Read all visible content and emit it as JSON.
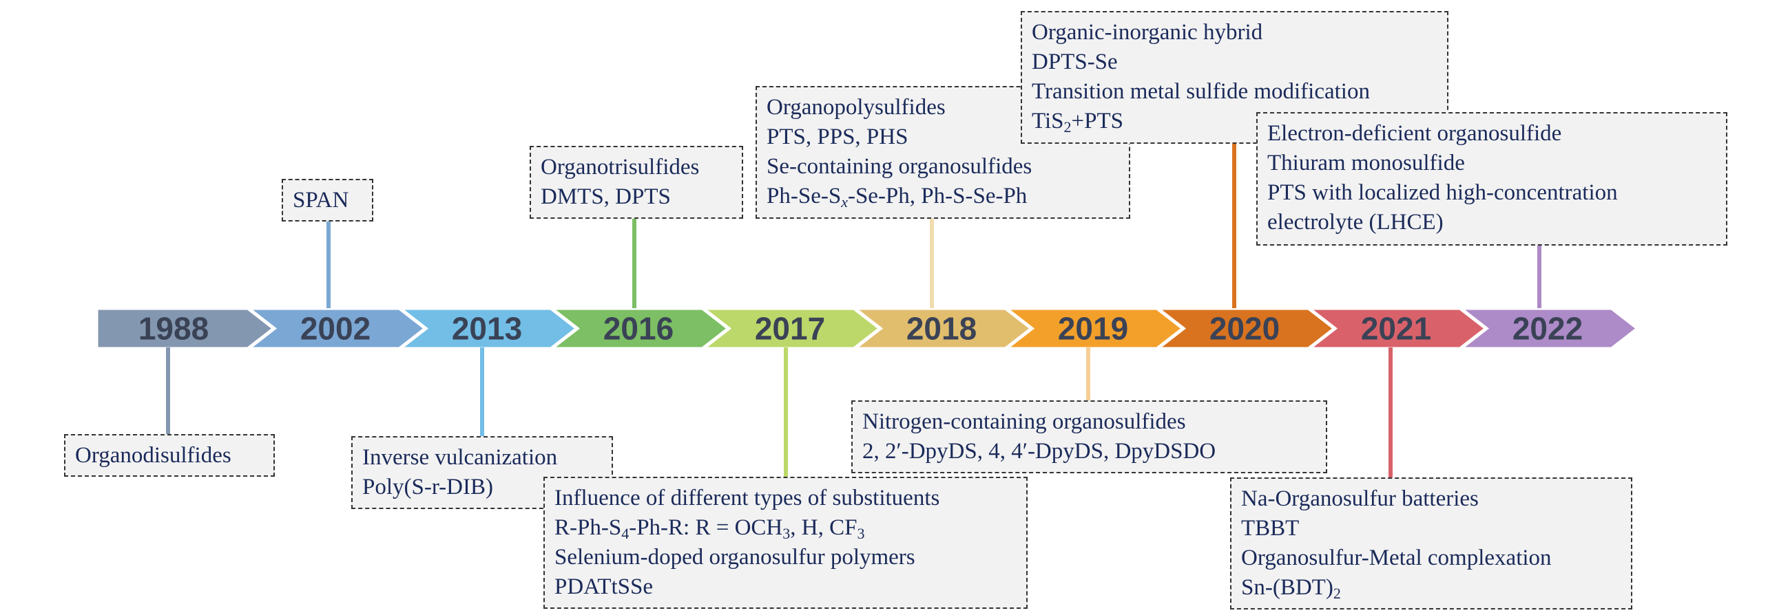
{
  "timeline": [
    {
      "year": "1988",
      "color": "#8497b0"
    },
    {
      "year": "2002",
      "color": "#7ba7d4"
    },
    {
      "year": "2013",
      "color": "#72bee6"
    },
    {
      "year": "2016",
      "color": "#7cbf64"
    },
    {
      "year": "2017",
      "color": "#bcd86a"
    },
    {
      "year": "2018",
      "color": "#e1bd6e"
    },
    {
      "year": "2019",
      "color": "#f3a02b"
    },
    {
      "year": "2020",
      "color": "#d9731f"
    },
    {
      "year": "2021",
      "color": "#d9626a"
    },
    {
      "year": "2022",
      "color": "#ad8ac8"
    }
  ],
  "boxes": {
    "b1988": {
      "lines": [
        "Organodisulfides"
      ]
    },
    "b2002": {
      "lines": [
        "SPAN"
      ]
    },
    "b2013": {
      "lines": [
        "Inverse vulcanization",
        "Poly(S-r-DIB)"
      ]
    },
    "b2016": {
      "lines": [
        "Organotrisulfides",
        "DMTS, DPTS"
      ]
    },
    "b2017": {
      "line1": "Influence of different types of substituents",
      "line2": {
        "a": "R-Ph-S",
        "s1": "4",
        "b": "-Ph-R: R = OCH",
        "s2": "3",
        "c": ", H, CF",
        "s3": "3"
      },
      "line3": "Selenium-doped organosulfur polymers",
      "line4": "PDATtSSe"
    },
    "b2018": {
      "line1": "Organopolysulfides",
      "line2": "PTS, PPS, PHS",
      "line3": "Se-containing organosulfides",
      "line4": {
        "a": "Ph-Se-S",
        "s1": "x",
        "b": "-Se-Ph, Ph-S-Se-Ph"
      }
    },
    "b2019": {
      "lines": [
        "Nitrogen-containing organosulfides",
        "2, 2′-DpyDS, 4, 4′-DpyDS, DpyDSDO"
      ]
    },
    "b2020": {
      "line1": "Organic-inorganic hybrid",
      "line2": "DPTS-Se",
      "line3": "Transition metal sulfide modification",
      "line4": {
        "a": "TiS",
        "s1": "2",
        "b": "+PTS"
      }
    },
    "b2021": {
      "line1": "Na-Organosulfur batteries",
      "line2": "TBBT",
      "line3": "Organosulfur-Metal complexation",
      "line4": {
        "a": "Sn-(BDT)",
        "s1": "2"
      }
    },
    "b2022": {
      "lines": [
        "Electron-deficient organosulfide",
        "Thiuram monosulfide",
        "PTS with localized high-concentration",
        "electrolyte (LHCE)"
      ]
    }
  }
}
